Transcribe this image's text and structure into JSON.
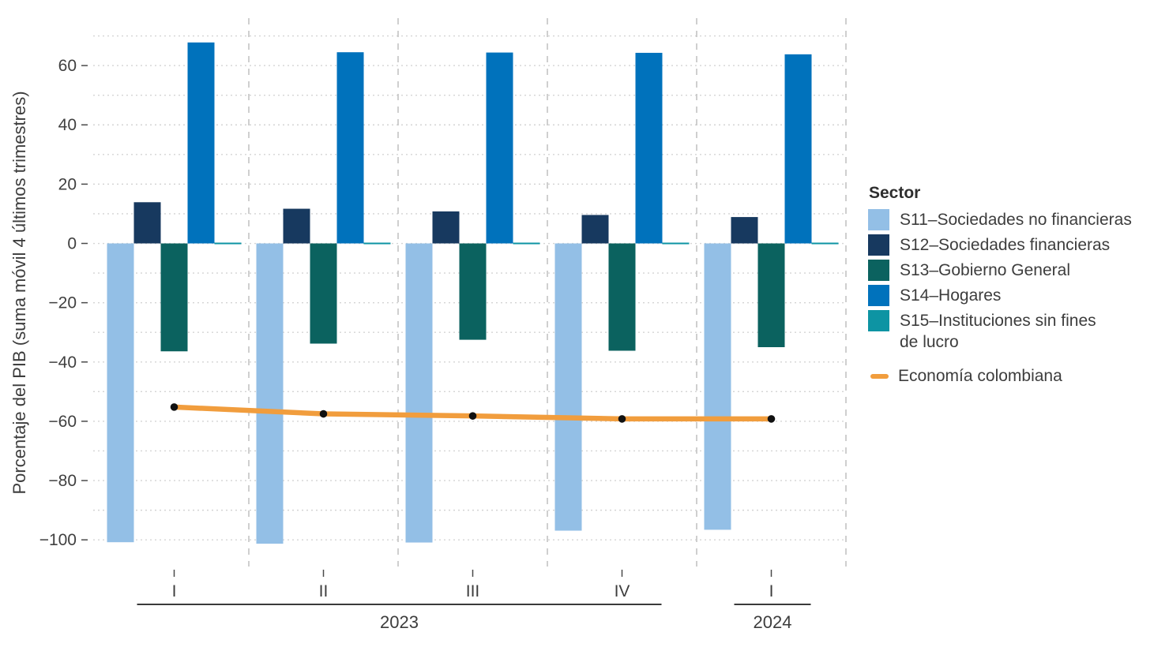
{
  "legend": {
    "title": "Sector"
  },
  "chart_data": {
    "type": "bar",
    "title": "",
    "xlabel": "",
    "ylabel": "Porcentaje del PIB (suma móvil 4 últimos trimestres)",
    "ylim": [
      -109,
      76
    ],
    "grid_step": 10,
    "grid_range": [
      -100,
      70
    ],
    "ytick_values": [
      60,
      40,
      20,
      0,
      -20,
      -40,
      -60,
      -80,
      -100
    ],
    "x_quarter_labels": [
      "I",
      "II",
      "III",
      "IV",
      "I"
    ],
    "year_spans": [
      {
        "label": "2023",
        "from": 0,
        "to": 3
      },
      {
        "label": "2024",
        "from": 4,
        "to": 4
      }
    ],
    "categories": [
      "I 2023",
      "II 2023",
      "III 2023",
      "IV 2023",
      "I 2024"
    ],
    "series": [
      {
        "name": "S11–Sociedades no financieras",
        "label": "S11–Sociedades no financieras",
        "color": "#93BFE6",
        "values": [
          -100.8,
          -101.3,
          -100.9,
          -96.9,
          -96.6
        ]
      },
      {
        "name": "S12–Sociedades financieras",
        "label": "S12–Sociedades financieras",
        "color": "#17395F",
        "values": [
          13.9,
          11.7,
          10.8,
          9.6,
          8.9
        ]
      },
      {
        "name": "S13–Gobierno General",
        "label": "S13–Gobierno General",
        "color": "#0B625F",
        "values": [
          -36.4,
          -33.8,
          -32.5,
          -36.2,
          -35.0
        ]
      },
      {
        "name": "S14–Hogares",
        "label": "S14–Hogares",
        "color": "#0072BC",
        "values": [
          67.8,
          64.5,
          64.4,
          64.3,
          63.8
        ]
      },
      {
        "name": "S15–Instituciones sin fines de lucro",
        "label": "S15–Instituciones sin fines\nde lucro",
        "color": "#0D94A3",
        "values": [
          0.3,
          0.3,
          0.3,
          0.3,
          0.3
        ]
      }
    ],
    "line_series": {
      "name": "Economía colombiana",
      "color": "#F19D3D",
      "marker_color": "#111111",
      "values": [
        -55.2,
        -57.5,
        -58.2,
        -59.2,
        -59.2
      ]
    },
    "legend_position": "right",
    "grid_on": true,
    "style": {
      "h_grid_color": "#d4d4d4",
      "v_grid_color": "#c3c3c3",
      "tick_color": "#4a4a4a",
      "year_line_color": "#3a3a3a",
      "text_color": "#3d3d3d",
      "background": "#ffffff"
    }
  }
}
